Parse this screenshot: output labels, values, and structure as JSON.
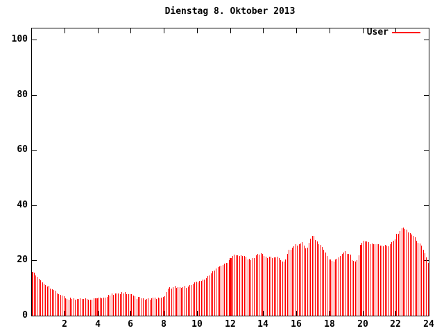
{
  "chart_data": {
    "type": "bar",
    "title": "Dienstag 8. Oktober 2013",
    "xlabel": "",
    "ylabel": "",
    "legend_position": "top-right-inside",
    "grid": false,
    "series": [
      {
        "name": "User",
        "color": "#ff0000"
      }
    ],
    "x_axis": {
      "min": 0,
      "max": 24,
      "unit": "hour",
      "ticks": [
        2,
        4,
        6,
        8,
        10,
        12,
        14,
        16,
        18,
        20,
        22,
        24
      ]
    },
    "y_axis": {
      "min": 0,
      "max": 104.4,
      "ticks": [
        0,
        20,
        40,
        60,
        80,
        100
      ]
    },
    "sample_minutes": 6,
    "jitter_amplitude": 0.45,
    "envelope_points_hour_value": [
      [
        0.0,
        16.2
      ],
      [
        0.15,
        15.3
      ],
      [
        0.3,
        14.0
      ],
      [
        0.5,
        13.2
      ],
      [
        0.7,
        12.0
      ],
      [
        0.9,
        11.2
      ],
      [
        1.1,
        10.3
      ],
      [
        1.3,
        9.4
      ],
      [
        1.5,
        8.4
      ],
      [
        1.7,
        7.6
      ],
      [
        1.9,
        6.9
      ],
      [
        2.1,
        6.3
      ],
      [
        2.5,
        6.1
      ],
      [
        3.0,
        6.1
      ],
      [
        3.5,
        6.1
      ],
      [
        4.0,
        6.2
      ],
      [
        4.4,
        6.3
      ],
      [
        4.7,
        7.4
      ],
      [
        5.0,
        8.0
      ],
      [
        5.6,
        8.2
      ],
      [
        5.9,
        7.6
      ],
      [
        6.1,
        7.4
      ],
      [
        6.35,
        6.4
      ],
      [
        7.0,
        6.2
      ],
      [
        7.6,
        6.2
      ],
      [
        8.0,
        6.4
      ],
      [
        8.2,
        9.6
      ],
      [
        8.5,
        10.4
      ],
      [
        9.0,
        10.3
      ],
      [
        9.4,
        10.6
      ],
      [
        9.7,
        11.6
      ],
      [
        10.0,
        12.3
      ],
      [
        10.3,
        12.6
      ],
      [
        10.6,
        13.8
      ],
      [
        10.9,
        15.6
      ],
      [
        11.2,
        17.4
      ],
      [
        11.5,
        18.4
      ],
      [
        11.8,
        18.9
      ],
      [
        12.0,
        20.8
      ],
      [
        12.2,
        22.2
      ],
      [
        12.5,
        21.8
      ],
      [
        12.8,
        22.0
      ],
      [
        13.1,
        20.4
      ],
      [
        13.3,
        20.1
      ],
      [
        13.5,
        21.4
      ],
      [
        13.8,
        22.9
      ],
      [
        14.0,
        22.3
      ],
      [
        14.2,
        21.4
      ],
      [
        14.5,
        21.0
      ],
      [
        14.8,
        21.2
      ],
      [
        15.0,
        20.3
      ],
      [
        15.3,
        19.7
      ],
      [
        15.5,
        23.3
      ],
      [
        15.8,
        25.4
      ],
      [
        16.1,
        25.8
      ],
      [
        16.4,
        26.4
      ],
      [
        16.6,
        23.9
      ],
      [
        16.9,
        28.3
      ],
      [
        17.0,
        29.0
      ],
      [
        17.2,
        27.2
      ],
      [
        17.5,
        25.2
      ],
      [
        17.7,
        23.2
      ],
      [
        18.0,
        20.1
      ],
      [
        18.3,
        19.8
      ],
      [
        18.6,
        21.2
      ],
      [
        18.9,
        23.2
      ],
      [
        19.2,
        22.2
      ],
      [
        19.5,
        18.9
      ],
      [
        19.7,
        21.0
      ],
      [
        19.9,
        26.3
      ],
      [
        20.1,
        27.0
      ],
      [
        20.4,
        26.4
      ],
      [
        20.8,
        25.7
      ],
      [
        21.2,
        25.4
      ],
      [
        21.6,
        25.1
      ],
      [
        21.9,
        27.6
      ],
      [
        22.1,
        29.8
      ],
      [
        22.3,
        31.0
      ],
      [
        22.45,
        32.4
      ],
      [
        22.6,
        31.2
      ],
      [
        22.8,
        30.2
      ],
      [
        23.0,
        29.3
      ],
      [
        23.2,
        27.6
      ],
      [
        23.4,
        26.2
      ],
      [
        23.6,
        24.6
      ],
      [
        23.8,
        22.6
      ],
      [
        23.95,
        19.6
      ]
    ],
    "emphasis_marks": [
      {
        "hour": 0.07,
        "width": 2
      },
      {
        "hour": 3.98,
        "width": 2
      },
      {
        "hour": 12.02,
        "width": 3
      },
      {
        "hour": 19.88,
        "width": 3
      }
    ]
  },
  "colors": {
    "bars": "#ff0000",
    "axis": "#000000",
    "text": "#000000",
    "background": "#ffffff"
  }
}
